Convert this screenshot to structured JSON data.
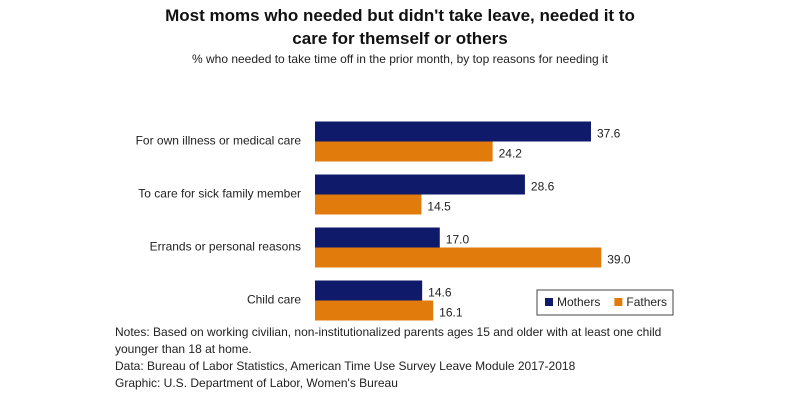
{
  "chart_data": {
    "type": "bar",
    "orientation": "horizontal",
    "title": "Most moms who needed but didn't take leave, needed it to care for themself or others",
    "subtitle": "% who needed to take time off in the prior month, by top reasons for needing it",
    "categories": [
      "For own illness or medical care",
      "To care for sick family member",
      "Errands or personal reasons",
      "Child care"
    ],
    "series": [
      {
        "name": "Mothers",
        "color": "#0f1a6b",
        "values": [
          37.6,
          28.6,
          17.0,
          14.6
        ],
        "value_labels": [
          "37.6",
          "28.6",
          "17.0",
          "14.6"
        ]
      },
      {
        "name": "Fathers",
        "color": "#e07b0c",
        "values": [
          24.2,
          14.5,
          39.0,
          16.1
        ],
        "value_labels": [
          "24.2",
          "14.5",
          "39.0",
          "16.1"
        ]
      }
    ],
    "legend": "bottom-right",
    "notes": [
      "Notes: Based on working civilian, non-institutionalized parents ages 15 and older with at least one child younger than 18 at home.",
      "Data: Bureau of Labor Statistics, American Time Use Survey Leave Module 2017-2018",
      "Graphic: U.S. Department of Labor, Women's Bureau"
    ]
  }
}
